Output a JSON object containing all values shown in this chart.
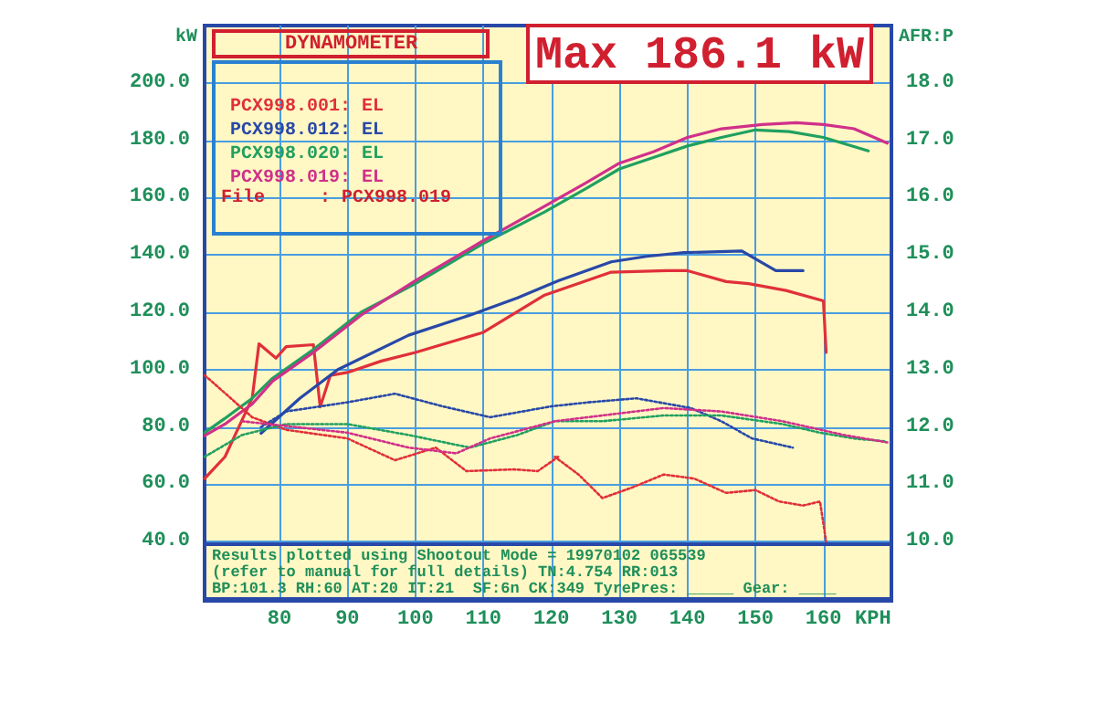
{
  "chart_data": {
    "type": "line",
    "title": "DYNAMOMETER",
    "xlabel": "KPH",
    "ylabel": "kW",
    "y2label": "AFR:P",
    "xlim": [
      69,
      170
    ],
    "xticks": [
      80,
      90,
      100,
      110,
      120,
      130,
      140,
      150,
      160
    ],
    "ylim": [
      20,
      220
    ],
    "yticks": [
      {
        "value": 40,
        "label": "40.0"
      },
      {
        "value": 60,
        "label": "60.0"
      },
      {
        "value": 80,
        "label": "80.0"
      },
      {
        "value": 100,
        "label": "100.0"
      },
      {
        "value": 120,
        "label": "120.0"
      },
      {
        "value": 140,
        "label": "140.0"
      },
      {
        "value": 160,
        "label": "160.0"
      },
      {
        "value": 180,
        "label": "180.0"
      },
      {
        "value": 200,
        "label": "200.0"
      }
    ],
    "y2lim": [
      9,
      19
    ],
    "y2ticks": [
      {
        "value": 10,
        "label": "10.0"
      },
      {
        "value": 11,
        "label": "11.0"
      },
      {
        "value": 12,
        "label": "12.0"
      },
      {
        "value": 13,
        "label": "13.0"
      },
      {
        "value": 14,
        "label": "14.0"
      },
      {
        "value": 15,
        "label": "15.0"
      },
      {
        "value": 16,
        "label": "16.0"
      },
      {
        "value": 17,
        "label": "17.0"
      },
      {
        "value": 18,
        "label": "18.0"
      }
    ],
    "grid": true,
    "legend": "top left",
    "marker": "none",
    "annotations": [
      "Max 186.1 kW",
      "File     : PCX998.019",
      "Results plotted using Shootout Mode = 19970102 065539",
      "(refer to manual for full details) TN:4.754 RR:013",
      "BP:101.3 RH:60 AT:20 IT:21  SF:6n CK:349 TyrePres: _____ Gear: ____"
    ],
    "series": [
      {
        "name": "PCX998.001: EL",
        "color": "#e0303a",
        "line_style": "solid",
        "x": [
          69,
          72,
          76,
          77,
          79.5,
          81,
          85,
          86,
          87.5,
          90,
          95,
          100,
          110,
          119,
          128.8,
          137,
          140,
          145.7,
          149,
          154.5,
          160,
          160.4
        ],
        "values": [
          62,
          69.6,
          90,
          109,
          104,
          108,
          108.7,
          87,
          98,
          99,
          103,
          106,
          113,
          126,
          134,
          134.5,
          134.5,
          130.7,
          130,
          127.6,
          124,
          106
        ]
      },
      {
        "name": "PCX998.012: EL",
        "color": "#2848a8",
        "line_style": "solid",
        "x": [
          77.3,
          83,
          88.6,
          99,
          108,
          115,
          121,
          128.8,
          134,
          139.5,
          148,
          153,
          157
        ],
        "values": [
          77.8,
          90,
          100,
          112,
          119,
          125,
          131,
          137.6,
          139.5,
          140.8,
          141.4,
          134.5,
          134.5
        ]
      },
      {
        "name": "PCX998.020: EL",
        "color": "#20a060",
        "line_style": "solid",
        "x": [
          69,
          72,
          76,
          79,
          85,
          92,
          100,
          105,
          110,
          119,
          125,
          130,
          135,
          140,
          145,
          150,
          155,
          160,
          166.6
        ],
        "values": [
          78,
          83,
          90,
          97,
          107,
          120,
          130,
          137,
          144,
          155,
          163,
          170,
          174,
          178,
          181,
          183.6,
          183,
          181,
          176.3
        ]
      },
      {
        "name": "PCX998.019: EL",
        "color": "#d0308a",
        "line_style": "solid",
        "x": [
          69,
          72,
          76,
          79,
          85,
          92,
          100,
          105,
          110,
          119,
          125,
          130,
          135,
          140,
          145,
          151,
          156,
          160,
          164.5,
          169.4
        ],
        "values": [
          77,
          81,
          88,
          96,
          106,
          119,
          131,
          138,
          145,
          157,
          165,
          172,
          176,
          181,
          184,
          185.5,
          186.1,
          185.5,
          184,
          179
        ]
      },
      {
        "color": "#e0303a",
        "axis": "y2",
        "line_style": "dotted",
        "x": [
          69,
          70,
          76,
          81,
          90,
          97,
          103,
          107.5,
          114.5,
          118,
          121,
          120.5,
          124,
          127.5,
          132,
          136.5,
          141,
          145.7,
          150,
          153.5,
          157,
          159.5,
          160.4
        ],
        "values": [
          12.9,
          12.8,
          12.17,
          11.95,
          11.8,
          11.42,
          11.64,
          11.23,
          11.26,
          11.23,
          11.48,
          11.48,
          11.17,
          10.76,
          10.95,
          11.17,
          11.1,
          10.85,
          10.9,
          10.7,
          10.63,
          10.7,
          10.0
        ]
      },
      {
        "color": "#2848a8",
        "axis": "y2",
        "line_style": "dotted",
        "x": [
          77.3,
          81,
          90,
          97,
          104,
          111,
          120,
          125.5,
          132.5,
          140.5,
          145,
          149.5,
          155.5
        ],
        "values": [
          12.0,
          12.27,
          12.43,
          12.58,
          12.36,
          12.17,
          12.36,
          12.43,
          12.5,
          12.33,
          12.1,
          11.8,
          11.64
        ]
      },
      {
        "color": "#20a060",
        "axis": "y2",
        "line_style": "dotted",
        "x": [
          69,
          74.5,
          81,
          90,
          99,
          108,
          115,
          120.5,
          127.5,
          136.5,
          145,
          154,
          159.5,
          164.5,
          169
        ],
        "values": [
          11.48,
          11.86,
          12.05,
          12.05,
          11.86,
          11.64,
          11.86,
          12.1,
          12.1,
          12.2,
          12.2,
          12.05,
          11.9,
          11.8,
          11.75
        ]
      },
      {
        "color": "#d0308a",
        "axis": "y2",
        "line_style": "dotted",
        "x": [
          74.5,
          90,
          99,
          106,
          111,
          120.5,
          127.5,
          136.5,
          145,
          154,
          163,
          169.4
        ],
        "values": [
          12.1,
          11.9,
          11.64,
          11.54,
          11.8,
          12.1,
          12.2,
          12.33,
          12.27,
          12.1,
          11.86,
          11.73
        ]
      }
    ]
  }
}
